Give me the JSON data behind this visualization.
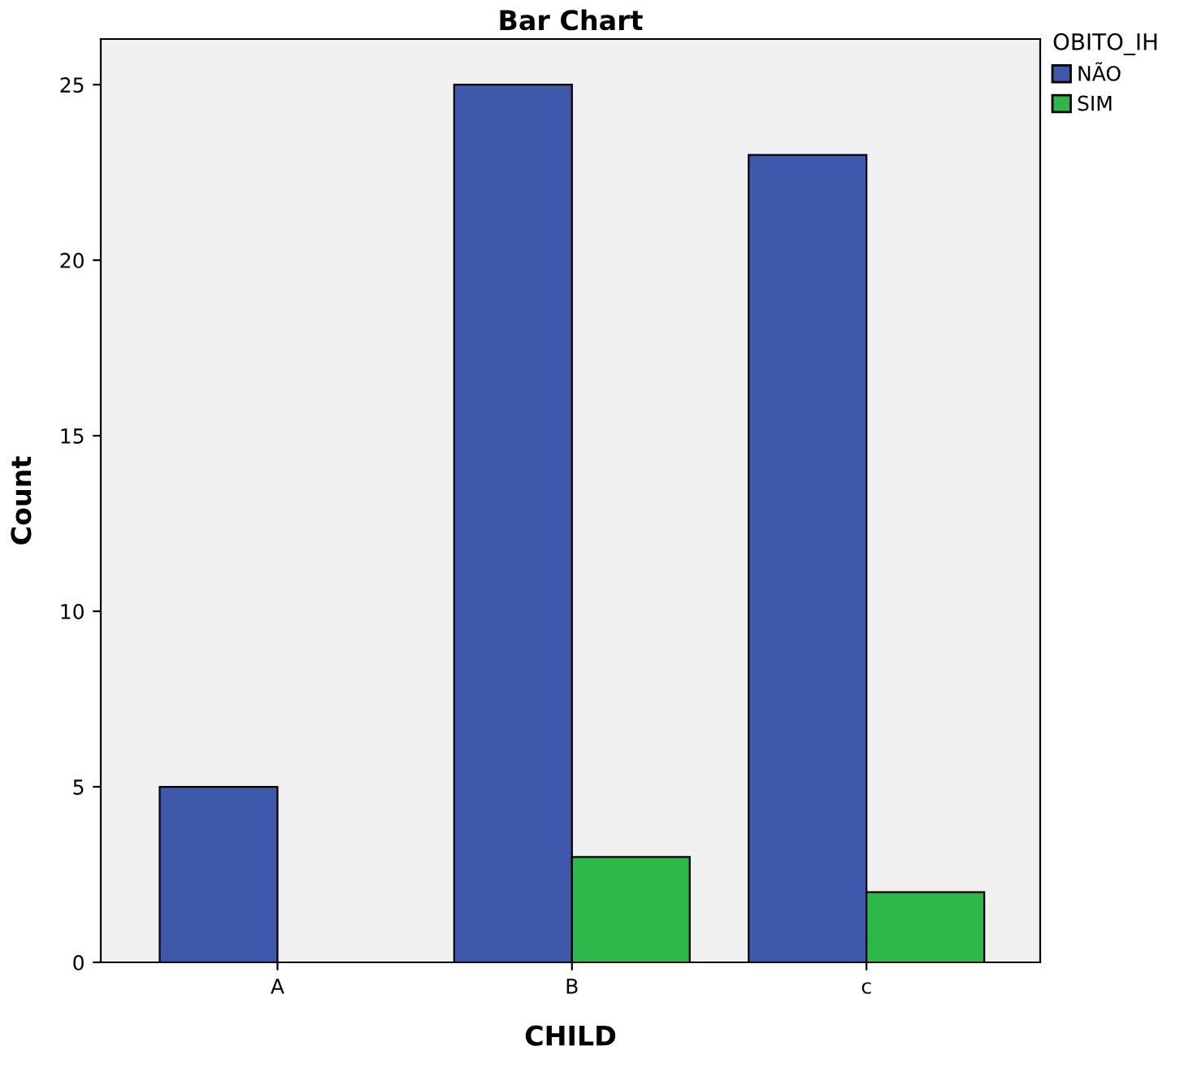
{
  "chart_data": {
    "type": "bar",
    "title": "Bar Chart",
    "xlabel": "CHILD",
    "ylabel": "Count",
    "legend_title": "OBITO_IH",
    "legend": "top right",
    "categories": [
      "A",
      "B",
      "c"
    ],
    "series": [
      {
        "name": "NÃO",
        "color": "#3e58ac",
        "values": [
          5,
          25,
          23
        ]
      },
      {
        "name": "SIM",
        "color": "#2db84a",
        "values": [
          null,
          3,
          2
        ]
      }
    ],
    "ylim": [
      0,
      26.3
    ],
    "yticks": [
      0,
      5,
      10,
      15,
      20,
      25
    ],
    "grid": false
  }
}
